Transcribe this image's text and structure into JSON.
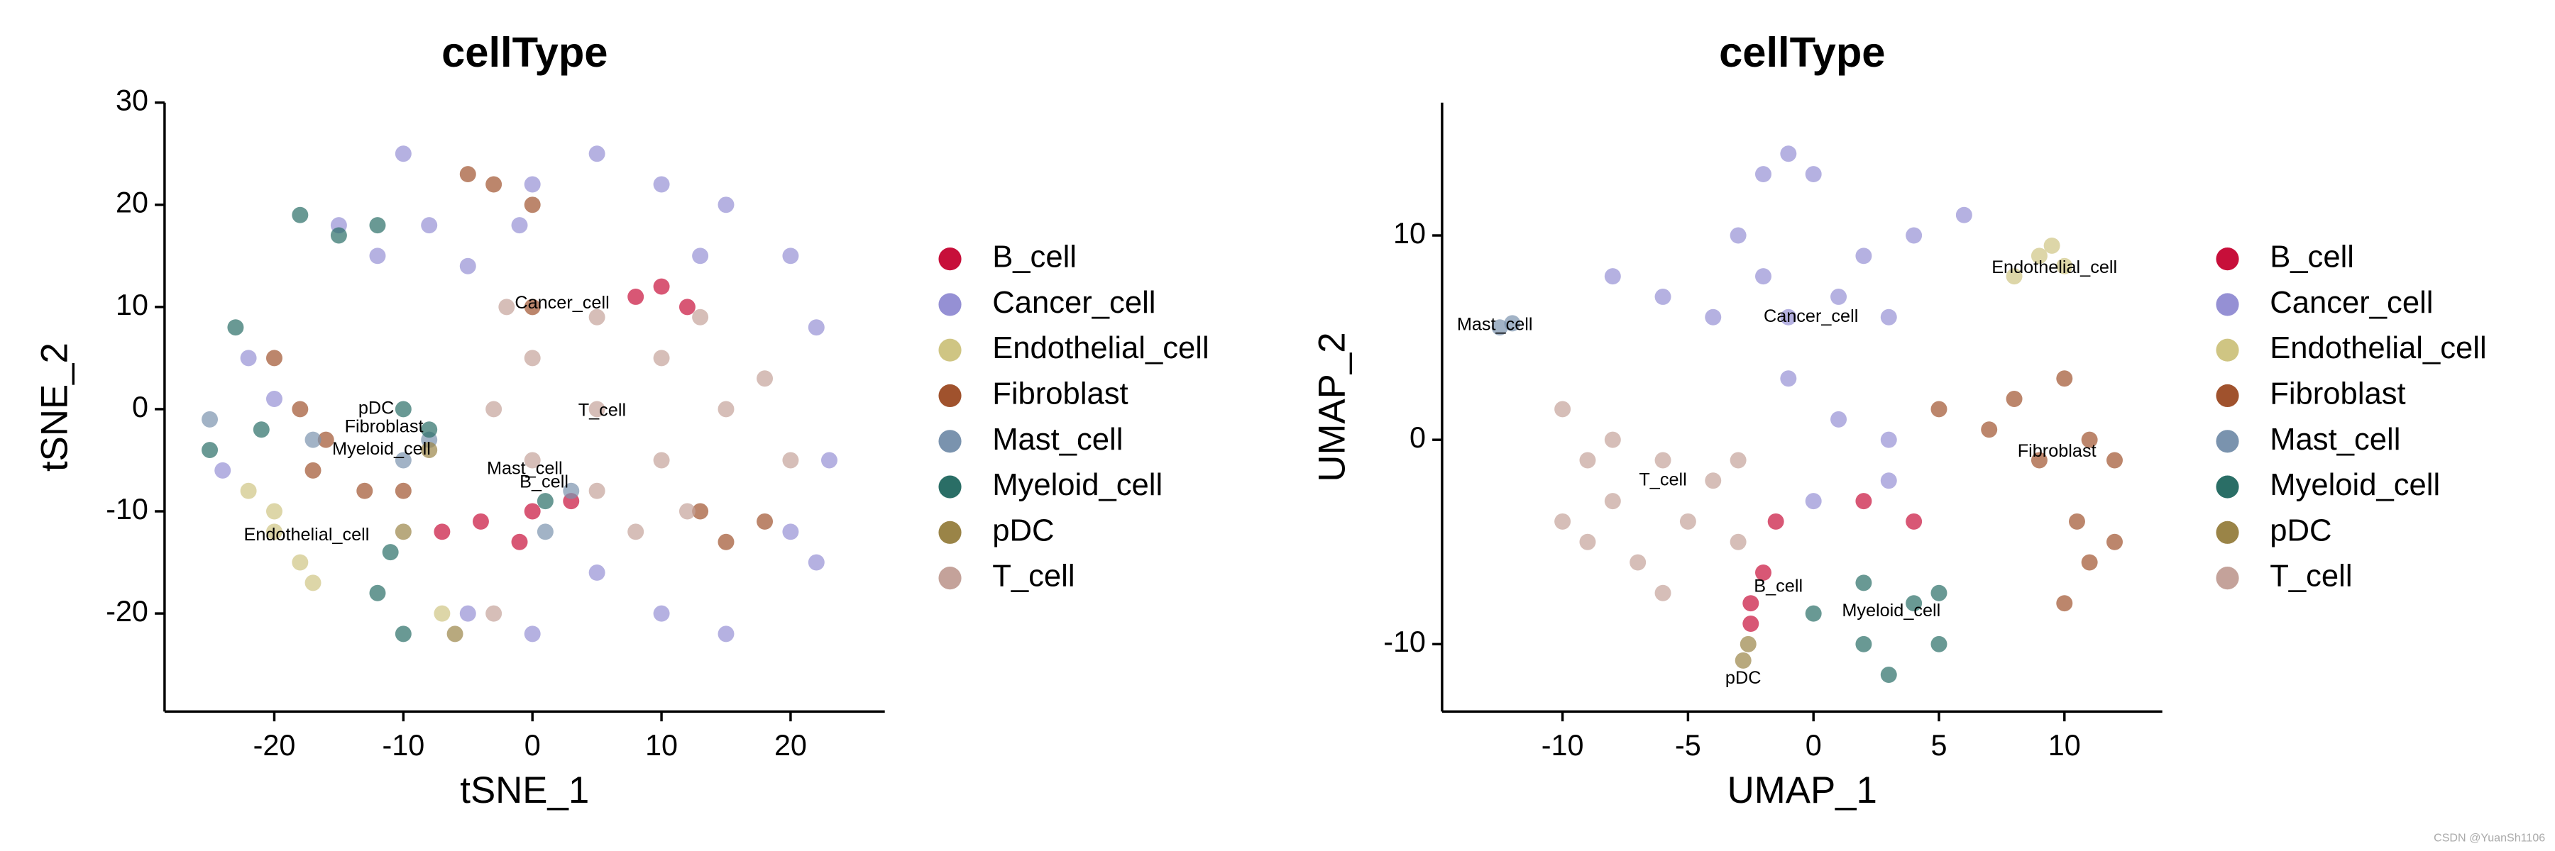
{
  "chart_data": [
    {
      "type": "scatter",
      "title": "cellType",
      "xlabel": "tSNE_1",
      "ylabel": "tSNE_2",
      "xlim": [
        -28.5,
        27.3
      ],
      "ylim": [
        -29.6,
        30
      ],
      "xticks": [
        -20,
        -10,
        0,
        10,
        20
      ],
      "yticks": [
        -20,
        -10,
        0,
        10,
        20,
        30
      ],
      "grid": false,
      "legend": "right",
      "series": [
        {
          "name": "B_cell",
          "color": "#c70f3a",
          "x": [
            0,
            -4,
            -7,
            3,
            10,
            12,
            -1,
            8
          ],
          "y": [
            -10,
            -11,
            -12,
            -9,
            12,
            10,
            -13,
            11
          ]
        },
        {
          "name": "Cancer_cell",
          "color": "#9590d4",
          "x": [
            0,
            5,
            10,
            15,
            20,
            22,
            -8,
            -12,
            -15,
            -22,
            -20,
            23,
            20,
            10,
            0,
            -5,
            5,
            -10,
            -5,
            -1,
            13,
            22,
            15,
            -24
          ],
          "y": [
            22,
            25,
            22,
            20,
            15,
            8,
            18,
            15,
            18,
            5,
            1,
            -5,
            -12,
            -20,
            -22,
            -20,
            -16,
            25,
            14,
            18,
            15,
            -15,
            -22,
            -6
          ]
        },
        {
          "name": "Endothelial_cell",
          "color": "#cfc583",
          "x": [
            -20,
            -22,
            -18,
            -17,
            -7,
            -20
          ],
          "y": [
            -10,
            -8,
            -15,
            -17,
            -20,
            -12
          ]
        },
        {
          "name": "Fibroblast",
          "color": "#a0522d",
          "x": [
            -18,
            -20,
            -16,
            -13,
            -17,
            -3,
            0,
            -5,
            13,
            15,
            18,
            0,
            -10
          ],
          "y": [
            0,
            5,
            -3,
            -8,
            -6,
            22,
            20,
            23,
            -10,
            -13,
            -11,
            10,
            -8
          ]
        },
        {
          "name": "Mast_cell",
          "color": "#7a93ae",
          "x": [
            -17,
            -10,
            -8,
            -25,
            1,
            3
          ],
          "y": [
            -3,
            -5,
            -3,
            -1,
            -12,
            -8
          ]
        },
        {
          "name": "Myeloid_cell",
          "color": "#2a6e66",
          "x": [
            -15,
            -18,
            -12,
            -23,
            -25,
            -21,
            -11,
            -12,
            -10,
            -8,
            -10,
            1
          ],
          "y": [
            17,
            19,
            18,
            8,
            -4,
            -2,
            -14,
            -18,
            -22,
            -2,
            0,
            -9
          ]
        },
        {
          "name": "pDC",
          "color": "#9a8447",
          "x": [
            -10,
            -6,
            -8
          ],
          "y": [
            -12,
            -22,
            -4
          ]
        },
        {
          "name": "T_cell",
          "color": "#c4a29a",
          "x": [
            5,
            0,
            10,
            0,
            10,
            15,
            -3,
            5,
            5,
            12,
            18,
            -2,
            13,
            8,
            -3,
            20
          ],
          "y": [
            0,
            5,
            5,
            -5,
            -5,
            0,
            0,
            9,
            -8,
            -10,
            3,
            10,
            9,
            -12,
            -20,
            -5
          ]
        }
      ],
      "annotations": [
        {
          "text": "Cancer_cell",
          "x": 2.3,
          "y": 10.3
        },
        {
          "text": "T_cell",
          "x": 5.4,
          "y": -0.2
        },
        {
          "text": "pDC",
          "x": -12.1,
          "y": 0
        },
        {
          "text": "Fibroblast",
          "x": -11.5,
          "y": -1.8
        },
        {
          "text": "Myeloid_cell",
          "x": -11.7,
          "y": -4
        },
        {
          "text": "Mast_cell",
          "x": -0.6,
          "y": -5.9
        },
        {
          "text": "B_cell",
          "x": 0.9,
          "y": -7.2
        },
        {
          "text": "Endothelial_cell",
          "x": -17.5,
          "y": -12.4
        }
      ]
    },
    {
      "type": "scatter",
      "title": "cellType",
      "xlabel": "UMAP_1",
      "ylabel": "UMAP_2",
      "xlim": [
        -14.8,
        13.9
      ],
      "ylim": [
        -13.3,
        16.5
      ],
      "xticks": [
        -10,
        -5,
        0,
        5,
        10
      ],
      "yticks": [
        -10,
        0,
        10
      ],
      "grid": false,
      "legend": "right",
      "series": [
        {
          "name": "B_cell",
          "color": "#c70f3a",
          "x": [
            -2.5,
            -2,
            -1.5,
            2,
            4,
            -2.5
          ],
          "y": [
            -8,
            -6.5,
            -4,
            -3,
            -4,
            -9
          ]
        },
        {
          "name": "Cancer_cell",
          "color": "#9590d4",
          "x": [
            -1,
            1,
            3,
            -3,
            -2,
            -1,
            0,
            4,
            6,
            -8,
            -6,
            -4,
            -1,
            1,
            3,
            -2,
            2,
            3,
            0
          ],
          "y": [
            6,
            7,
            6,
            10,
            13,
            14,
            13,
            10,
            11,
            8,
            7,
            6,
            3,
            1,
            0,
            8,
            9,
            -2,
            -3
          ]
        },
        {
          "name": "Endothelial_cell",
          "color": "#cfc583",
          "x": [
            9,
            10,
            8,
            9.5
          ],
          "y": [
            9,
            8.5,
            8,
            9.5
          ]
        },
        {
          "name": "Fibroblast",
          "color": "#a0522d",
          "x": [
            8,
            10,
            11,
            9,
            7,
            10.5,
            11,
            10,
            12,
            5,
            12
          ],
          "y": [
            2,
            3,
            0,
            -1,
            0.5,
            -4,
            -6,
            -8,
            -5,
            1.5,
            -1
          ]
        },
        {
          "name": "Mast_cell",
          "color": "#7a93ae",
          "x": [
            -12.5,
            -12
          ],
          "y": [
            5.5,
            5.7
          ]
        },
        {
          "name": "Myeloid_cell",
          "color": "#2a6e66",
          "x": [
            2,
            4,
            5,
            2,
            3,
            0,
            5
          ],
          "y": [
            -7,
            -8,
            -10,
            -10,
            -11.5,
            -8.5,
            -7.5
          ]
        },
        {
          "name": "pDC",
          "color": "#9a8447",
          "x": [
            -2.8,
            -2.6
          ],
          "y": [
            -10.8,
            -10
          ]
        },
        {
          "name": "T_cell",
          "color": "#c4a29a",
          "x": [
            -10,
            -9,
            -8,
            -6,
            -4,
            -9,
            -7,
            -5,
            -3,
            -10,
            -6,
            -8,
            -3
          ],
          "y": [
            1.5,
            -1,
            -3,
            -1,
            -2,
            -5,
            -6,
            -4,
            -1,
            -4,
            -7.5,
            0,
            -5
          ]
        }
      ],
      "annotations": [
        {
          "text": "Mast_cell",
          "x": -12.7,
          "y": 5.6
        },
        {
          "text": "Cancer_cell",
          "x": -0.1,
          "y": 6
        },
        {
          "text": "Endothelial_cell",
          "x": 9.6,
          "y": 8.4
        },
        {
          "text": "Fibroblast",
          "x": 9.7,
          "y": -0.6
        },
        {
          "text": "T_cell",
          "x": -6,
          "y": -2
        },
        {
          "text": "B_cell",
          "x": -1.4,
          "y": -7.2
        },
        {
          "text": "Myeloid_cell",
          "x": 3.1,
          "y": -8.4
        },
        {
          "text": "pDC",
          "x": -2.8,
          "y": -11.7
        }
      ]
    }
  ],
  "watermark": "CSDN @YuanSh1106"
}
